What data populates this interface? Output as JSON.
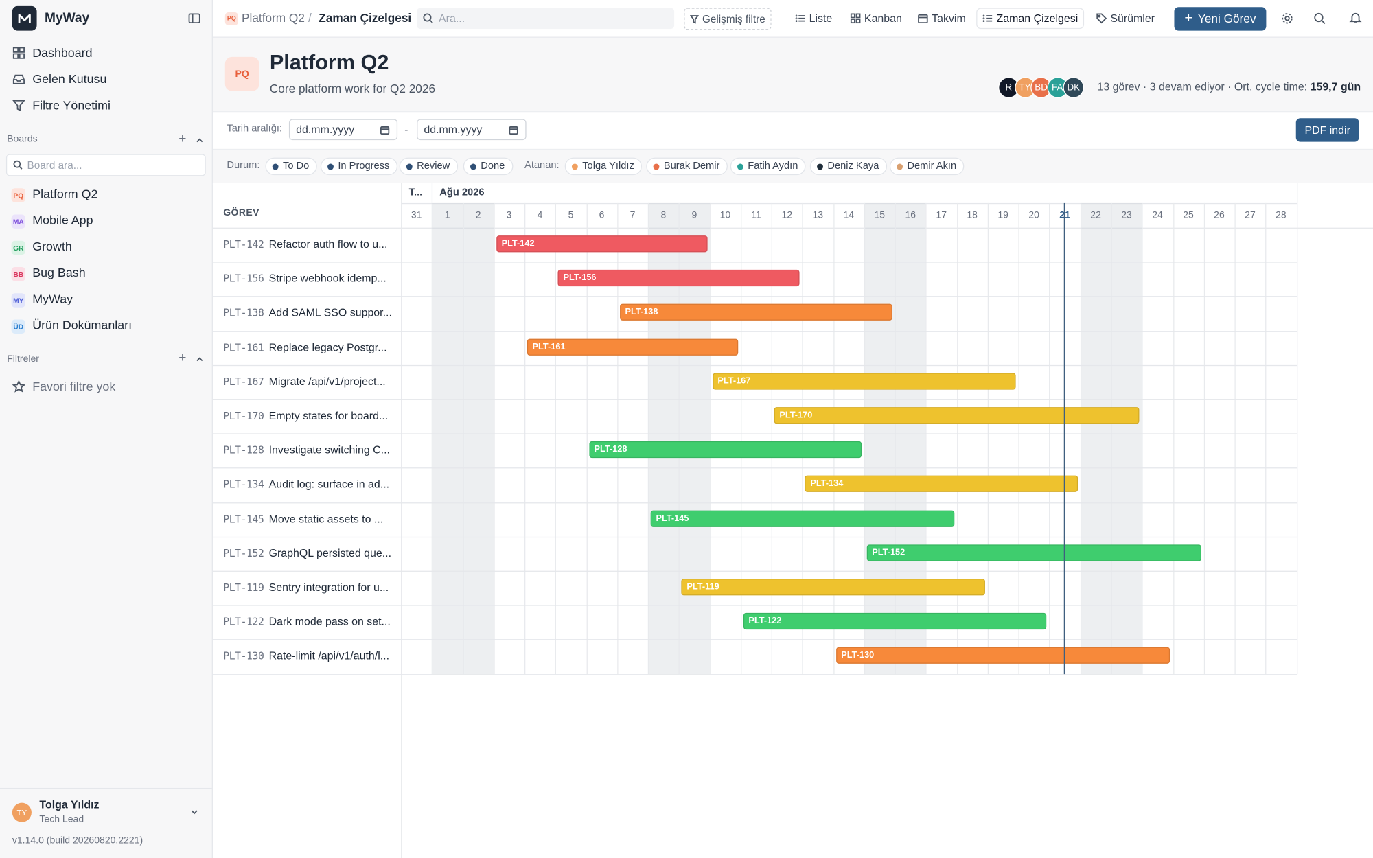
{
  "sidebar": {
    "app_name": "MyWay",
    "nav": [
      "Dashboard",
      "Gelen Kutusu",
      "Filtre Yönetimi"
    ],
    "boards_label": "Boards",
    "board_search_placeholder": "Board ara...",
    "boards": [
      {
        "badge": "PQ",
        "name": "Platform Q2",
        "color": "#e8603c",
        "bg": "#fde3dc"
      },
      {
        "badge": "MA",
        "name": "Mobile App",
        "color": "#7c4ddb",
        "bg": "#ebe3fb"
      },
      {
        "badge": "GR",
        "name": "Growth",
        "color": "#1f9d5c",
        "bg": "#dcf3e6"
      },
      {
        "badge": "BB",
        "name": "Bug Bash",
        "color": "#d9345c",
        "bg": "#fbdfe6"
      },
      {
        "badge": "MY",
        "name": "MyWay",
        "color": "#4b5bd6",
        "bg": "#e2e5fb"
      },
      {
        "badge": "ÜD",
        "name": "Ürün Dokümanları",
        "color": "#2b7fd0",
        "bg": "#dcebfa"
      }
    ],
    "filters_label": "Filtreler",
    "no_filters": "Favori filtre yok",
    "user": {
      "initials": "TY",
      "name": "Tolga Yıldız",
      "role": "Tech Lead"
    },
    "version": "v1.14.0 (build 20260820.2221)"
  },
  "topbar": {
    "badge": "PQ",
    "breadcrumb": [
      "Platform Q2",
      "Zaman Çizelgesi"
    ],
    "search_placeholder": "Ara...",
    "advanced_filter": "Gelişmiş filtre",
    "tabs": [
      "Liste",
      "Kanban",
      "Takvim",
      "Zaman Çizelgesi",
      "Sürümler"
    ],
    "active_tab": "Zaman Çizelgesi",
    "new_task": "Yeni Görev"
  },
  "header": {
    "badge": "PQ",
    "title": "Platform Q2",
    "subtitle": "Core platform work for Q2 2026",
    "avatars": [
      {
        "initials": "R",
        "color": "#111827"
      },
      {
        "initials": "TY",
        "color": "#f0a060"
      },
      {
        "initials": "BD",
        "color": "#e8704a"
      },
      {
        "initials": "FA",
        "color": "#2aa198"
      },
      {
        "initials": "DK",
        "color": "#2f4858"
      }
    ],
    "stats": "13 görev · 3 devam ediyor · Ort. cycle time:",
    "cycle_time": "159,7 gün"
  },
  "date_range": {
    "label": "Tarih aralığı:",
    "from": "dd.mm.yyyy",
    "separator": "-",
    "to": "dd.mm.yyyy",
    "pdf": "PDF indir"
  },
  "filters": {
    "status_label": "Durum:",
    "statuses": [
      "To Do",
      "In Progress",
      "Review",
      "Done"
    ],
    "assignee_label": "Atanan:",
    "assignees": [
      {
        "name": "Tolga Yıldız",
        "color": "#f0a060"
      },
      {
        "name": "Burak Demir",
        "color": "#e8704a"
      },
      {
        "name": "Fatih Aydın",
        "color": "#2aa198"
      },
      {
        "name": "Deniz Kaya",
        "color": "#1f2d3a"
      },
      {
        "name": "Demir Akın",
        "color": "#d9a070"
      }
    ]
  },
  "gantt": {
    "header_label": "GÖREV",
    "first_month": "T...",
    "month": "Ağu 2026",
    "days": [
      31,
      1,
      2,
      3,
      4,
      5,
      6,
      7,
      8,
      9,
      10,
      11,
      12,
      13,
      14,
      15,
      16,
      17,
      18,
      19,
      20,
      21,
      22,
      23,
      24,
      25,
      26,
      27,
      28
    ],
    "today": 21,
    "tasks": [
      {
        "id": "PLT-142",
        "title": "Refactor auth flow to u...",
        "start": 3,
        "end": 9,
        "color": "#ef5a61"
      },
      {
        "id": "PLT-156",
        "title": "Stripe webhook idemp...",
        "start": 5,
        "end": 12,
        "color": "#ef5a61"
      },
      {
        "id": "PLT-138",
        "title": "Add SAML SSO suppor...",
        "start": 7,
        "end": 15,
        "color": "#f7893a"
      },
      {
        "id": "PLT-161",
        "title": "Replace legacy Postgr...",
        "start": 4,
        "end": 10,
        "color": "#f7893a"
      },
      {
        "id": "PLT-167",
        "title": "Migrate /api/v1/project...",
        "start": 10,
        "end": 19,
        "color": "#eec22e"
      },
      {
        "id": "PLT-170",
        "title": "Empty states for board...",
        "start": 12,
        "end": 23,
        "color": "#eec22e"
      },
      {
        "id": "PLT-128",
        "title": "Investigate switching C...",
        "start": 6,
        "end": 14,
        "color": "#3fcd6e"
      },
      {
        "id": "PLT-134",
        "title": "Audit log: surface in ad...",
        "start": 13,
        "end": 21,
        "color": "#eec22e"
      },
      {
        "id": "PLT-145",
        "title": "Move static assets to ...",
        "start": 8,
        "end": 17,
        "color": "#3fcd6e"
      },
      {
        "id": "PLT-152",
        "title": "GraphQL persisted que...",
        "start": 15,
        "end": 25,
        "color": "#3fcd6e"
      },
      {
        "id": "PLT-119",
        "title": "Sentry integration for u...",
        "start": 9,
        "end": 18,
        "color": "#eec22e"
      },
      {
        "id": "PLT-122",
        "title": "Dark mode pass on set...",
        "start": 11,
        "end": 20,
        "color": "#3fcd6e"
      },
      {
        "id": "PLT-130",
        "title": "Rate-limit /api/v1/auth/l...",
        "start": 14,
        "end": 24,
        "color": "#f7893a"
      }
    ]
  }
}
